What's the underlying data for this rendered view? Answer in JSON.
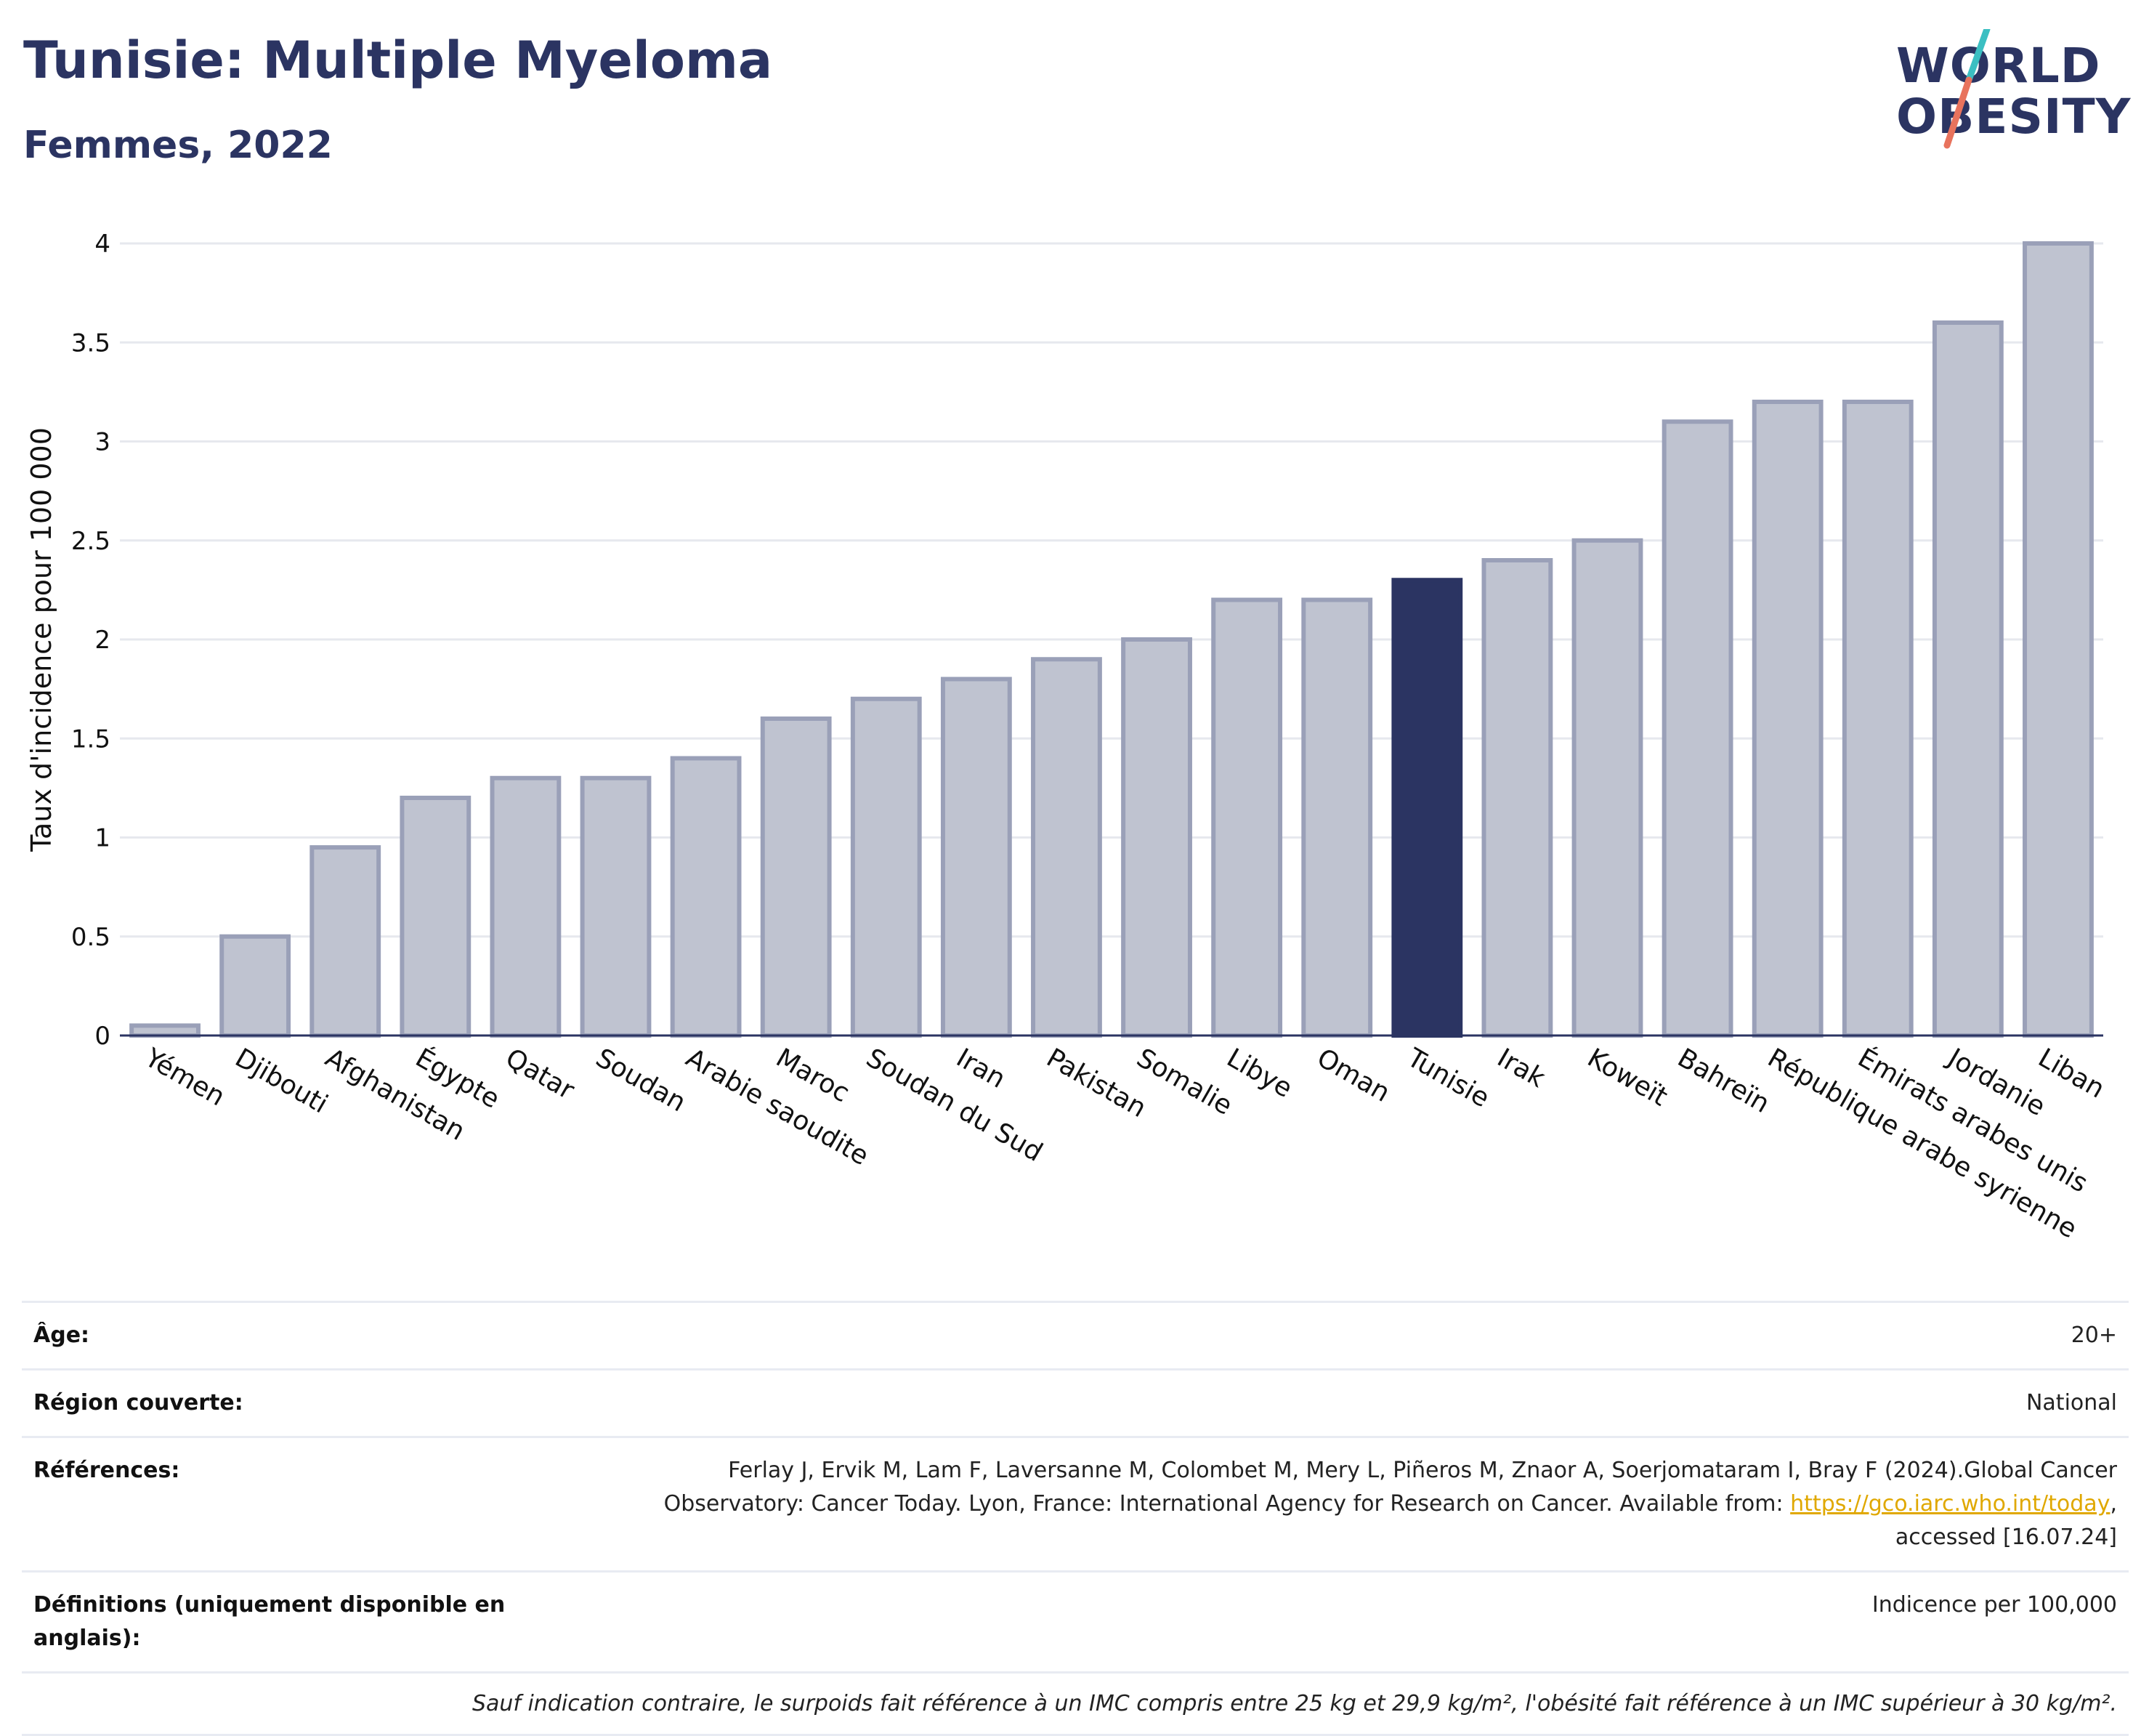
{
  "header": {
    "title": "Tunisie: Multiple Myeloma",
    "subtitle": "Femmes, 2022",
    "logo_line1": "WORLD",
    "logo_line2": "OBESITY"
  },
  "colors": {
    "bar": "#bfc3d0",
    "bar_border": "#9aa0b8",
    "highlight": "#2b3462",
    "grid": "#e6e8ee",
    "axis": "#2b3462",
    "logo_teal": "#3bbfc2",
    "logo_coral": "#e8735d"
  },
  "chart_data": {
    "type": "bar",
    "title": "",
    "xlabel": "",
    "ylabel": "Taux d'incidence pour 100 000",
    "ylim": [
      0,
      4
    ],
    "yticks": [
      0,
      0.5,
      1,
      1.5,
      2,
      2.5,
      3,
      3.5,
      4
    ],
    "ytick_labels": [
      "0",
      "0.5",
      "1",
      "1.5",
      "2",
      "2.5",
      "3",
      "3.5",
      "4"
    ],
    "grid": true,
    "highlight": "Tunisie",
    "categories": [
      "Yémen",
      "Djibouti",
      "Afghanistan",
      "Égypte",
      "Qatar",
      "Soudan",
      "Arabie saoudite",
      "Maroc",
      "Soudan du Sud",
      "Iran",
      "Pakistan",
      "Somalie",
      "Libye",
      "Oman",
      "Tunisie",
      "Irak",
      "Koweït",
      "Bahreïn",
      "République arabe syrienne",
      "Émirats arabes unis",
      "Jordanie",
      "Liban"
    ],
    "values": [
      0.05,
      0.5,
      0.95,
      1.2,
      1.3,
      1.3,
      1.4,
      1.6,
      1.7,
      1.8,
      1.9,
      2.0,
      2.2,
      2.2,
      2.3,
      2.4,
      2.5,
      3.1,
      3.2,
      3.2,
      3.6,
      4.0
    ]
  },
  "meta": {
    "age_label": "Âge:",
    "age_value": "20+",
    "region_label": "Région couverte:",
    "region_value": "National",
    "references_label": "Références:",
    "references_text_1": "Ferlay J, Ervik M, Lam F, Laversanne M, Colombet M, Mery L, Piñeros M, Znaor A, Soerjomataram I, Bray F (2024).Global Cancer Observatory: Cancer Today. Lyon, France: International Agency for Research on Cancer. Available from: ",
    "references_link": "https://gco.iarc.who.int/today",
    "references_text_2": ", accessed [16.07.24]",
    "definitions_label": "Définitions (uniquement disponible en anglais):",
    "definitions_value": "Indicence per 100,000",
    "note": "Sauf indication contraire, le surpoids fait référence à un IMC compris entre 25 kg et 29,9 kg/m², l'obésité fait référence à un IMC supérieur à 30 kg/m²."
  }
}
